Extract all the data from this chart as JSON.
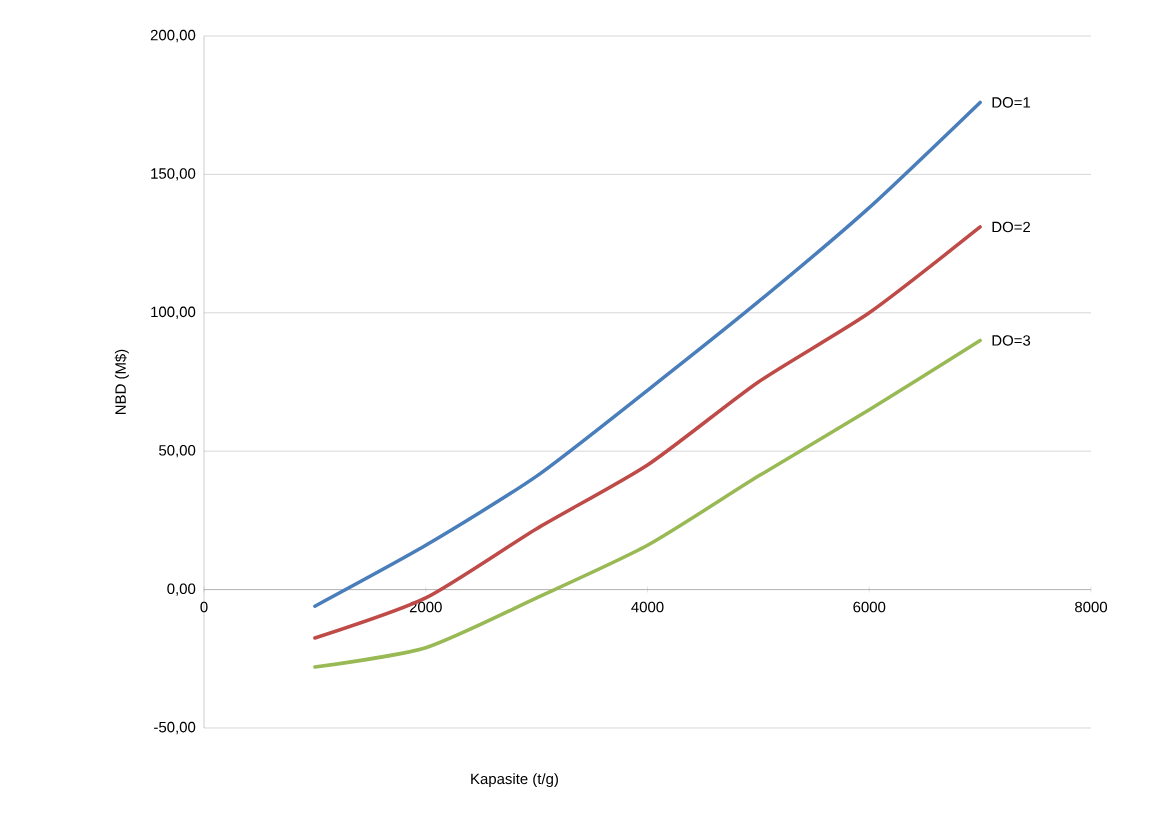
{
  "chart_data": {
    "type": "line",
    "xlabel": "Kapasite (t/g)",
    "ylabel": "NBD (M$)",
    "x": [
      1000,
      2000,
      3000,
      4000,
      5000,
      6000,
      7000
    ],
    "series": [
      {
        "name": "DO=1",
        "color": "#4a7ebb",
        "values": [
          -6,
          16,
          41,
          72,
          104,
          138,
          176
        ]
      },
      {
        "name": "DO=2",
        "color": "#be4b48",
        "values": [
          -17.5,
          -3,
          22,
          45,
          75,
          100,
          131
        ]
      },
      {
        "name": "DO=3",
        "color": "#98b954",
        "values": [
          -28,
          -21,
          -3,
          16,
          41,
          65,
          90
        ]
      }
    ],
    "xlim": [
      0,
      8000
    ],
    "ylim": [
      -50,
      200
    ],
    "xticks": [
      0,
      2000,
      4000,
      6000,
      8000
    ],
    "yticks": [
      {
        "value": -50,
        "label": "-50,00"
      },
      {
        "value": 0,
        "label": "0,00"
      },
      {
        "value": 50,
        "label": "50,00"
      },
      {
        "value": 100,
        "label": "100,00"
      },
      {
        "value": 150,
        "label": "150,00"
      },
      {
        "value": 200,
        "label": "200,00"
      }
    ],
    "grid": "y",
    "legend": false,
    "marker": "none",
    "line_style": "solid"
  }
}
